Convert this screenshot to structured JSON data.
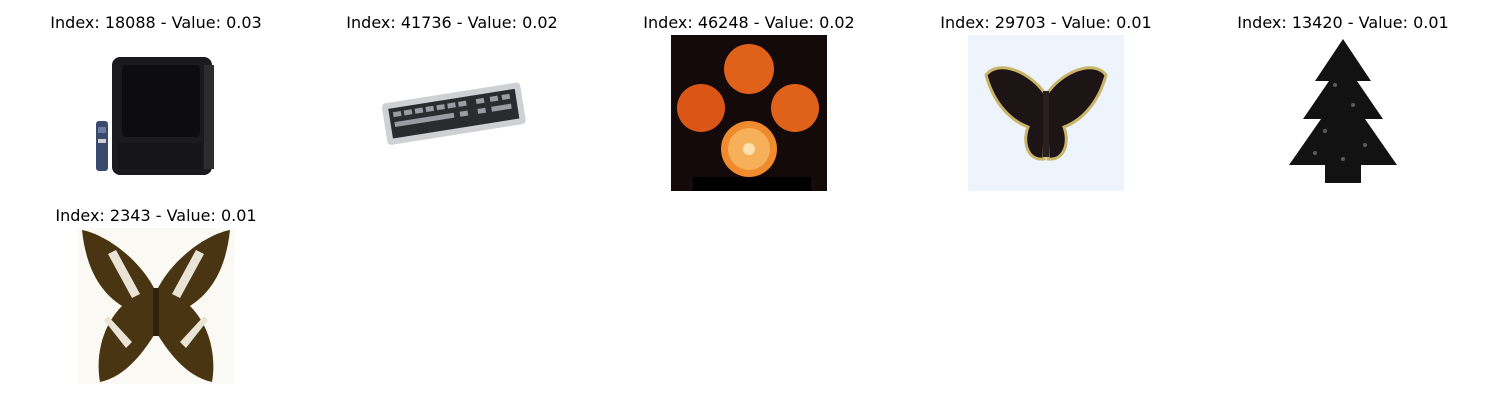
{
  "panels": [
    {
      "title": "Index: 18088 - Value: 0.03",
      "subject": "television with remote"
    },
    {
      "title": "Index: 41736 - Value: 0.02",
      "subject": "keyboard"
    },
    {
      "title": "Index: 46248 - Value: 0.02",
      "subject": "oranges"
    },
    {
      "title": "Index: 29703 - Value: 0.01",
      "subject": "dark butterfly"
    },
    {
      "title": "Index: 13420 - Value: 0.01",
      "subject": "pine tree"
    },
    {
      "title": "Index: 2343 - Value: 0.01",
      "subject": "brown butterfly"
    }
  ]
}
